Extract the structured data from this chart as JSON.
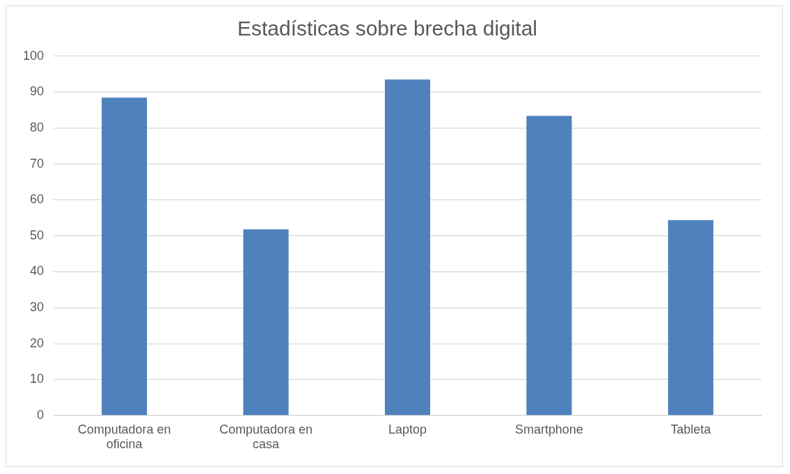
{
  "chart_data": {
    "type": "bar",
    "title": "Estadísticas sobre brecha digital",
    "categories": [
      "Computadora en oficina",
      "Computadora en casa",
      "Laptop",
      "Smartphone",
      "Tableta"
    ],
    "values": [
      88.5,
      51.8,
      93.5,
      83.4,
      54.4
    ],
    "color": "#4f81bd",
    "ylim": [
      0,
      100
    ],
    "yticks": [
      0,
      10,
      20,
      30,
      40,
      50,
      60,
      70,
      80,
      90,
      100
    ],
    "grid": "y",
    "legend": false
  }
}
